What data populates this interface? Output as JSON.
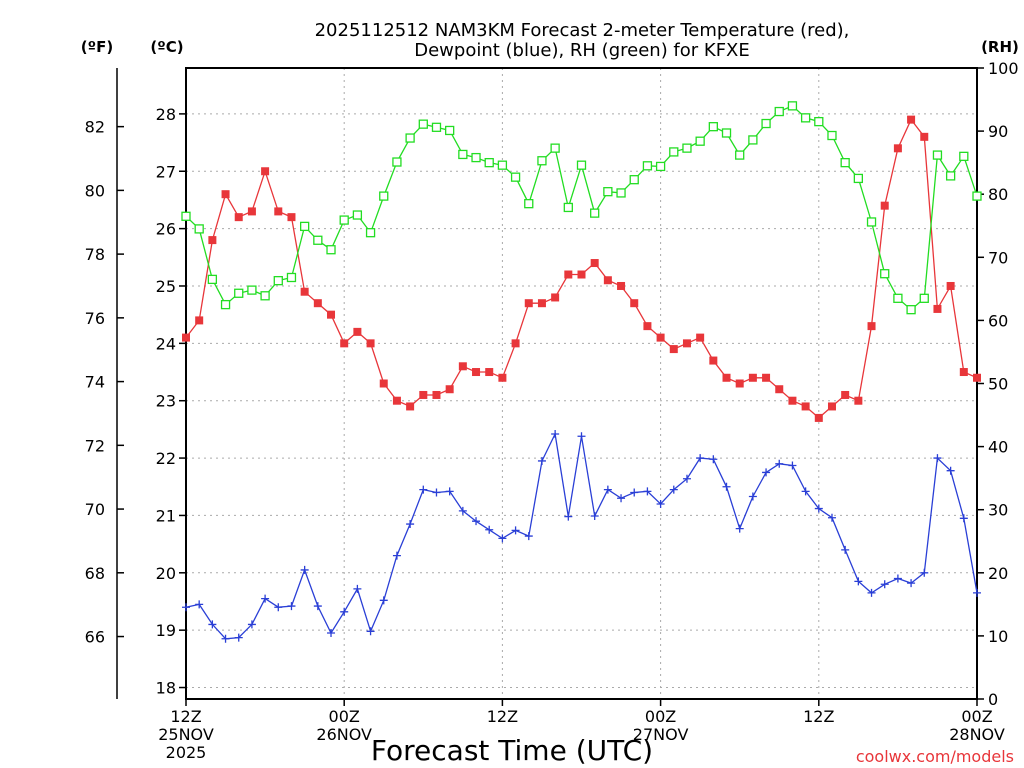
{
  "chart_data": {
    "type": "line",
    "title": "2025112512 NAM3KM Forecast 2-meter Temperature (red),",
    "subtitle": "Dewpoint (blue), RH (green) for KFXE",
    "xlabel": "Forecast Time (UTC)",
    "watermark": "coolwx.com/models",
    "unit_labels": {
      "fahrenheit": "(ºF)",
      "celsius": "(ºC)",
      "rh": "(RH)"
    },
    "x_range": [
      0,
      60
    ],
    "celsius_range": [
      17.8,
      28.8
    ],
    "rh_range": [
      0,
      100
    ],
    "celsius_ticks": [
      18,
      19,
      20,
      21,
      22,
      23,
      24,
      25,
      26,
      27,
      28
    ],
    "fahrenheit_ticks": [
      66,
      68,
      70,
      72,
      74,
      76,
      78,
      80,
      82
    ],
    "rh_ticks": [
      0,
      10,
      20,
      30,
      40,
      50,
      60,
      70,
      80,
      90,
      100
    ],
    "x_ticks": [
      {
        "hour": 0,
        "line1": "12Z",
        "line2": "25NOV",
        "line3": "2025"
      },
      {
        "hour": 12,
        "line1": "00Z",
        "line2": "26NOV",
        "line3": ""
      },
      {
        "hour": 24,
        "line1": "12Z",
        "line2": "",
        "line3": ""
      },
      {
        "hour": 36,
        "line1": "00Z",
        "line2": "27NOV",
        "line3": ""
      },
      {
        "hour": 48,
        "line1": "12Z",
        "line2": "",
        "line3": ""
      },
      {
        "hour": 60,
        "line1": "00Z",
        "line2": "28NOV",
        "line3": ""
      }
    ],
    "x": [
      0,
      1,
      2,
      3,
      4,
      5,
      6,
      7,
      8,
      9,
      10,
      11,
      12,
      13,
      14,
      15,
      16,
      17,
      18,
      19,
      20,
      21,
      22,
      23,
      24,
      25,
      26,
      27,
      28,
      29,
      30,
      31,
      32,
      33,
      34,
      35,
      36,
      37,
      38,
      39,
      40,
      41,
      42,
      43,
      44,
      45,
      46,
      47,
      48,
      49,
      50,
      51,
      52,
      53,
      54,
      55,
      56,
      57,
      58,
      59,
      60
    ],
    "series": [
      {
        "name": "Temperature (°C)",
        "color": "#e8363a",
        "marker": "filled-square",
        "values": [
          24.1,
          24.4,
          25.8,
          26.6,
          26.2,
          26.3,
          27.0,
          26.3,
          26.2,
          24.9,
          24.7,
          24.5,
          24.0,
          24.2,
          24.0,
          23.3,
          23.0,
          22.9,
          23.1,
          23.1,
          23.2,
          23.6,
          23.5,
          23.5,
          23.4,
          24.0,
          24.7,
          24.7,
          24.8,
          25.2,
          25.2,
          25.4,
          25.1,
          25.0,
          24.7,
          24.3,
          24.1,
          23.9,
          24.0,
          24.1,
          23.7,
          23.4,
          23.3,
          23.4,
          23.4,
          23.2,
          23.0,
          22.9,
          22.7,
          22.9,
          23.1,
          23.0,
          24.3,
          26.4,
          27.4,
          27.9,
          27.6,
          24.6,
          25.0,
          23.5,
          23.4
        ]
      },
      {
        "name": "Dewpoint (°C)",
        "color": "#2a3fd6",
        "marker": "plus",
        "values": [
          19.4,
          19.45,
          19.1,
          18.85,
          18.87,
          19.1,
          19.55,
          19.4,
          19.42,
          20.05,
          19.42,
          18.95,
          19.32,
          19.72,
          18.98,
          19.52,
          20.3,
          20.85,
          21.45,
          21.4,
          21.42,
          21.08,
          20.9,
          20.75,
          20.6,
          20.74,
          20.64,
          21.95,
          22.42,
          20.98,
          22.38,
          20.99,
          21.45,
          21.3,
          21.4,
          21.42,
          21.2,
          21.45,
          21.64,
          22.0,
          21.98,
          21.5,
          20.77,
          21.33,
          21.75,
          21.9,
          21.87,
          21.42,
          21.12,
          20.96,
          20.4,
          19.85,
          19.65,
          19.8,
          19.9,
          19.82,
          20.0,
          22.0,
          21.78,
          20.95,
          19.65
        ]
      },
      {
        "name": "RH (%)",
        "color": "#22dd22",
        "marker": "open-square",
        "values": [
          76.5,
          74.5,
          66.5,
          62.5,
          64.3,
          64.8,
          63.9,
          66.3,
          66.8,
          74.9,
          72.7,
          71.2,
          75.9,
          76.7,
          73.9,
          79.7,
          85.1,
          88.9,
          91.1,
          90.6,
          90.1,
          86.3,
          85.8,
          85.0,
          84.6,
          82.7,
          78.5,
          85.3,
          87.3,
          77.9,
          84.6,
          77.0,
          80.4,
          80.2,
          82.3,
          84.5,
          84.4,
          86.7,
          87.3,
          88.4,
          90.7,
          89.7,
          86.2,
          88.6,
          91.2,
          93.1,
          94.0,
          92.1,
          91.5,
          89.3,
          85.0,
          82.5,
          75.6,
          67.4,
          63.5,
          61.7,
          63.5,
          86.2,
          82.9,
          86.0,
          79.7
        ]
      }
    ]
  }
}
